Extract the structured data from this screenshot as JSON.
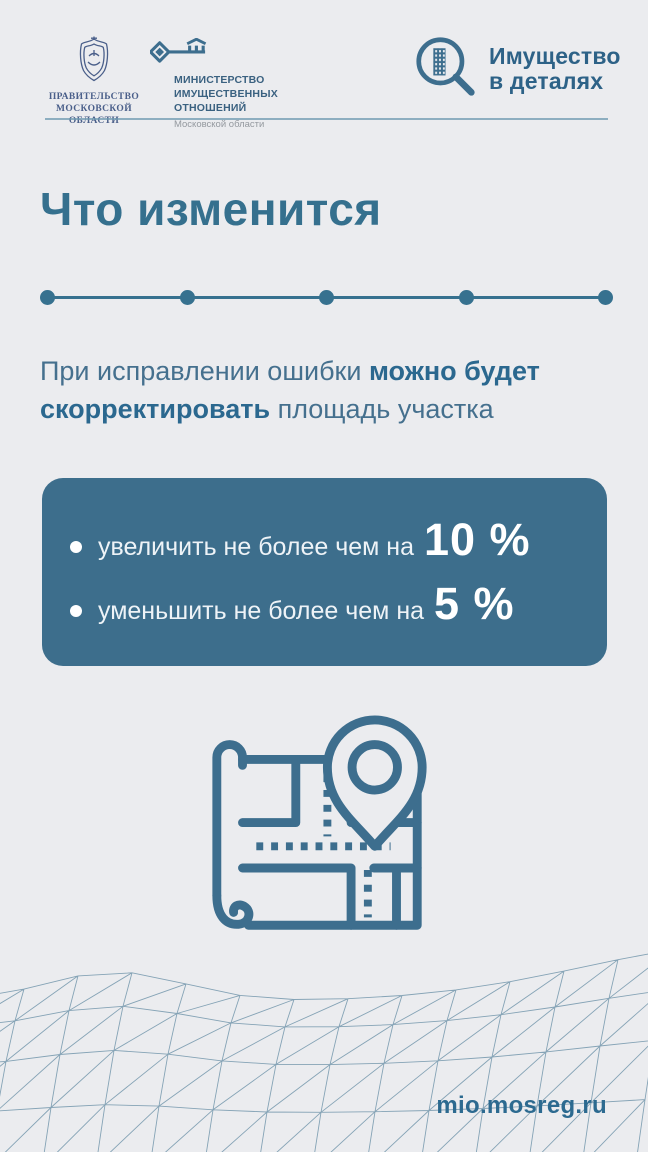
{
  "page": {
    "background": "#ebecef",
    "accent": "#35708e",
    "card_background": "#3d6e8c",
    "mesh_line_color": "#41738f"
  },
  "icons": {
    "government": "coat-of-arms-icon",
    "ministry": "key-building-icon",
    "brand": "magnifier-building-icon",
    "illustration": "map-with-location-pin-icon"
  },
  "header": {
    "government_logo": {
      "line1": "ПРАВИТЕЛЬСТВО",
      "line2": "МОСКОВСКОЙ",
      "line3": "ОБЛАСТИ"
    },
    "ministry_logo": {
      "line1": "МИНИСТЕРСТВО",
      "line2": "ИМУЩЕСТВЕННЫХ",
      "line3": "ОТНОШЕНИЙ",
      "line4": "Московской области"
    },
    "brand": {
      "line1": "Имущество",
      "line2": "в деталях"
    }
  },
  "main": {
    "title": "Что изменится",
    "timeline_dots": 5,
    "intro": {
      "pre": "При исправлении ошибки ",
      "bold": "можно будет скорректировать",
      "post": " площадь участка"
    },
    "card": {
      "items": [
        {
          "text": "увеличить не более чем на",
          "value": "10 %"
        },
        {
          "text": "уменьшить не более чем на",
          "value": "5 %"
        }
      ]
    }
  },
  "footer": {
    "site": "mio.mosreg.ru"
  }
}
